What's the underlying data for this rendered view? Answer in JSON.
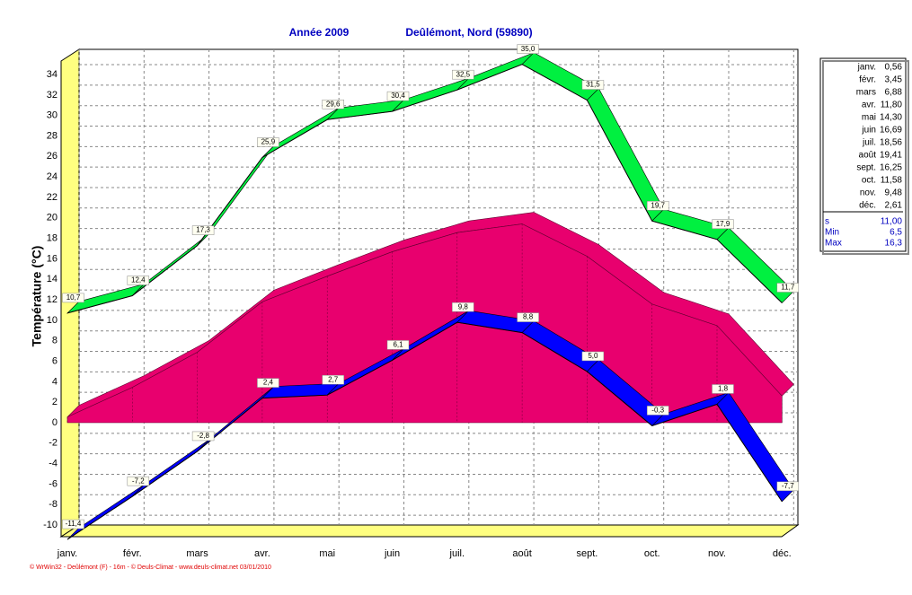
{
  "chart_data": {
    "type": "line",
    "title": "Année  2009",
    "subtitle": "Deûlémont, Nord (59890)",
    "y_label": "Température  (°C)",
    "footer": "© WrWin32 - Deûlémont (F) - 16m - © Deuls-Climat - www.deuls-climat.net  03/01/2010",
    "categories": [
      "janv.",
      "févr.",
      "mars",
      "avr.",
      "mai",
      "juin",
      "juil.",
      "août",
      "sept.",
      "oct.",
      "nov.",
      "déc."
    ],
    "ylim": [
      -11,
      36.5
    ],
    "yticks": [
      -10,
      -8,
      -6,
      -4,
      -2,
      0,
      2,
      4,
      6,
      8,
      10,
      12,
      14,
      16,
      18,
      20,
      22,
      24,
      26,
      28,
      30,
      32,
      34
    ],
    "grid": true,
    "series": [
      {
        "kind": "area",
        "color": "#e8006e",
        "values": [
          0.56,
          3.45,
          6.88,
          11.8,
          14.3,
          16.69,
          18.56,
          19.41,
          16.25,
          11.58,
          9.48,
          2.61
        ],
        "value_labels": [
          "0,56",
          "3,45",
          "6,88",
          "11,80",
          "14,30",
          "16,69",
          "18,56",
          "19,41",
          "16,25",
          "11,58",
          "9,48",
          "2,61"
        ]
      },
      {
        "kind": "line",
        "color": "#00f040",
        "values": [
          10.7,
          12.4,
          17.3,
          25.9,
          29.6,
          30.4,
          32.5,
          35.0,
          31.5,
          19.7,
          17.9,
          11.7
        ],
        "value_labels": [
          "10,7",
          "12,4",
          "17,3",
          "25,9",
          "29,6",
          "30,4",
          "32,5",
          "35,0",
          "31,5",
          "19,7",
          "17,9",
          "11,7"
        ]
      },
      {
        "kind": "line",
        "color": "#0000ff",
        "values": [
          -11.4,
          -7.2,
          -2.8,
          2.4,
          2.7,
          6.1,
          9.8,
          8.8,
          5.0,
          -0.3,
          1.8,
          -7.7
        ],
        "value_labels": [
          "-11,4",
          "-7,2",
          "-2,8",
          "2,4",
          "2,7",
          "6,1",
          "9,8",
          "8,8",
          "5,0",
          "-0,3",
          "1,8",
          "-7,7"
        ]
      }
    ],
    "stats": [
      [
        "s",
        "11,00"
      ],
      [
        "Min",
        "6,5"
      ],
      [
        "Max",
        "16,3"
      ]
    ]
  }
}
